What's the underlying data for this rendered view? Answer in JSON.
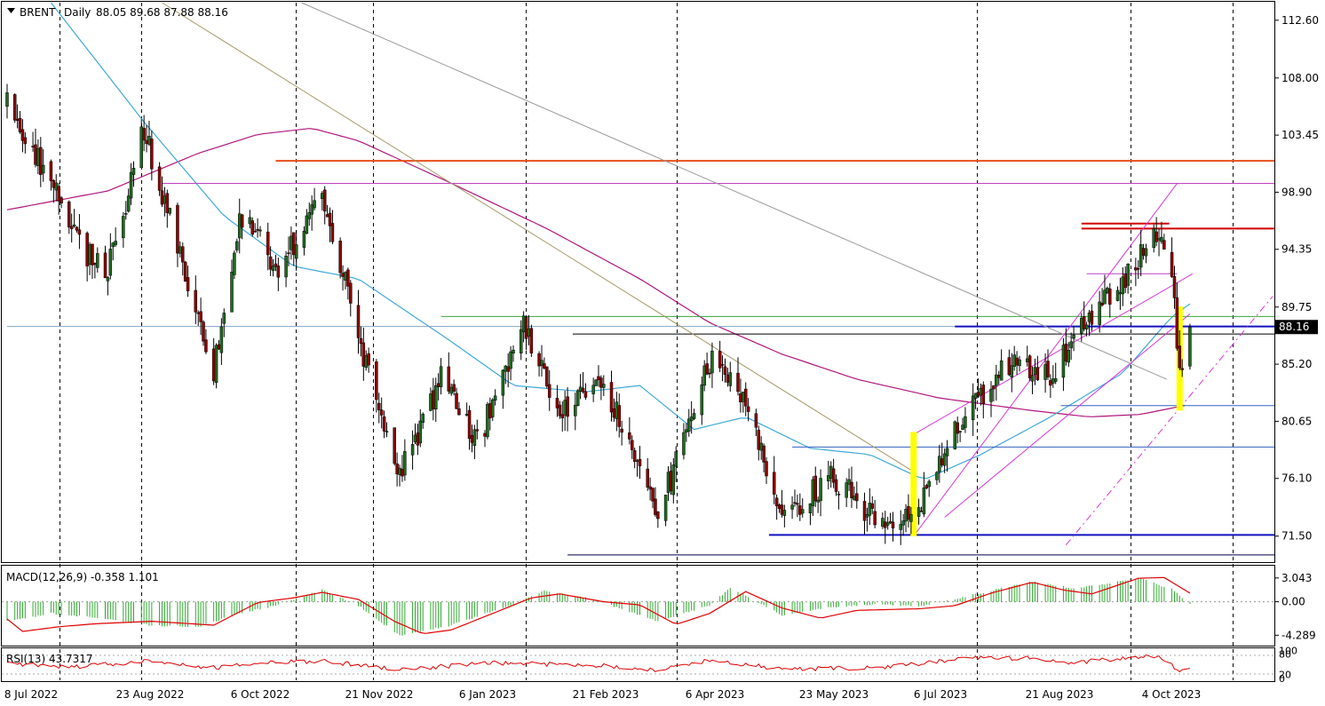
{
  "header": {
    "symbol": "BRENT",
    "timeframe": "Daily",
    "ohlc": "88.05 89.68 87.88 88.16",
    "menu_icon": "triangle-down-icon"
  },
  "price_axis": {
    "ticks": [
      "112.60",
      "108.00",
      "103.45",
      "98.90",
      "94.35",
      "89.75",
      "85.20",
      "80.65",
      "76.10",
      "71.50"
    ],
    "last_price_label": "88.16"
  },
  "macd_panel": {
    "label": "MACD(12,26,9) -0.358 1.101",
    "ticks": [
      "3.043",
      "0.00",
      "-4.289"
    ]
  },
  "rsi_panel": {
    "label": "RSI(13) 43.7317",
    "ticks": [
      "100",
      "80",
      "20",
      "0"
    ]
  },
  "time_axis": {
    "labels": [
      "8 Jul 2022",
      "23 Aug 2022",
      "6 Oct 2022",
      "21 Nov 2022",
      "6 Jan 2023",
      "21 Feb 2023",
      "6 Apr 2023",
      "23 May 2023",
      "6 Jul 2023",
      "21 Aug 2023",
      "4 Oct 2023"
    ]
  },
  "colors": {
    "background": "#ffffff",
    "bull_candle": "#1f6b1f",
    "bear_candle": "#8b0000",
    "ma_fast": "#3fa9d9",
    "ma_slow": "#b0157e",
    "macd_histogram": "#32a832",
    "macd_signal": "#e00000",
    "rsi_line": "#e00000",
    "resistance_orange": "#e8501a",
    "resistance_red": "#d00000",
    "support_blue": "#1010c0",
    "highlight_yellow": "#ffff00",
    "channel_magenta": "#d63ad6",
    "grid": "#000000"
  },
  "chart_data": {
    "type": "candlestick",
    "instrument": "BRENT",
    "timeframe": "Daily",
    "last_close": 88.16,
    "ylim": [
      69.5,
      114
    ],
    "x_range": [
      "2022-07-08",
      "2023-11-10"
    ],
    "grid": "vertical dashed",
    "price_path_anchors": [
      {
        "date": "2022-07-08",
        "price": 106
      },
      {
        "date": "2022-07-22",
        "price": 101
      },
      {
        "date": "2022-08-05",
        "price": 94.5
      },
      {
        "date": "2022-08-16",
        "price": 92.5
      },
      {
        "date": "2022-08-30",
        "price": 104
      },
      {
        "date": "2022-09-13",
        "price": 94
      },
      {
        "date": "2022-09-26",
        "price": 84.5
      },
      {
        "date": "2022-10-06",
        "price": 97
      },
      {
        "date": "2022-10-21",
        "price": 93
      },
      {
        "date": "2022-11-07",
        "price": 98.5
      },
      {
        "date": "2022-11-21",
        "price": 87.5
      },
      {
        "date": "2022-12-07",
        "price": 76.5
      },
      {
        "date": "2022-12-23",
        "price": 84
      },
      {
        "date": "2023-01-06",
        "price": 79
      },
      {
        "date": "2023-01-24",
        "price": 88
      },
      {
        "date": "2023-02-07",
        "price": 81
      },
      {
        "date": "2023-02-24",
        "price": 84
      },
      {
        "date": "2023-03-17",
        "price": 73
      },
      {
        "date": "2023-04-06",
        "price": 85.5
      },
      {
        "date": "2023-04-20",
        "price": 82.5
      },
      {
        "date": "2023-05-04",
        "price": 72.5
      },
      {
        "date": "2023-05-23",
        "price": 76.5
      },
      {
        "date": "2023-06-12",
        "price": 72
      },
      {
        "date": "2023-06-26",
        "price": 74
      },
      {
        "date": "2023-07-13",
        "price": 81
      },
      {
        "date": "2023-08-01",
        "price": 85.5
      },
      {
        "date": "2023-08-16",
        "price": 84
      },
      {
        "date": "2023-08-31",
        "price": 89
      },
      {
        "date": "2023-09-13",
        "price": 92
      },
      {
        "date": "2023-09-27",
        "price": 96
      },
      {
        "date": "2023-10-02",
        "price": 93
      },
      {
        "date": "2023-10-05",
        "price": 84.5
      },
      {
        "date": "2023-10-09",
        "price": 88.16
      }
    ],
    "ma_fast_path": [
      {
        "date": "2022-07-25",
        "price": 114
      },
      {
        "date": "2022-08-30",
        "price": 104.5
      },
      {
        "date": "2022-09-30",
        "price": 97
      },
      {
        "date": "2022-10-27",
        "price": 93
      },
      {
        "date": "2022-11-21",
        "price": 92
      },
      {
        "date": "2022-12-27",
        "price": 87
      },
      {
        "date": "2023-01-20",
        "price": 83.5
      },
      {
        "date": "2023-02-17",
        "price": 83
      },
      {
        "date": "2023-03-10",
        "price": 83.5
      },
      {
        "date": "2023-03-31",
        "price": 80
      },
      {
        "date": "2023-04-20",
        "price": 81
      },
      {
        "date": "2023-05-15",
        "price": 78.5
      },
      {
        "date": "2023-06-07",
        "price": 78
      },
      {
        "date": "2023-06-28",
        "price": 76
      },
      {
        "date": "2023-07-20",
        "price": 78
      },
      {
        "date": "2023-08-16",
        "price": 81
      },
      {
        "date": "2023-09-13",
        "price": 84.5
      },
      {
        "date": "2023-10-02",
        "price": 89
      },
      {
        "date": "2023-10-09",
        "price": 90
      }
    ],
    "ma_slow_path": [
      {
        "date": "2022-07-08",
        "price": 97.5
      },
      {
        "date": "2022-08-16",
        "price": 99
      },
      {
        "date": "2022-09-20",
        "price": 102
      },
      {
        "date": "2022-10-13",
        "price": 103.5
      },
      {
        "date": "2022-11-03",
        "price": 104
      },
      {
        "date": "2022-11-21",
        "price": 103
      },
      {
        "date": "2022-12-23",
        "price": 100
      },
      {
        "date": "2023-02-02",
        "price": 96
      },
      {
        "date": "2023-03-10",
        "price": 92
      },
      {
        "date": "2023-04-06",
        "price": 88.5
      },
      {
        "date": "2023-05-04",
        "price": 86
      },
      {
        "date": "2023-06-02",
        "price": 84
      },
      {
        "date": "2023-07-04",
        "price": 82.5
      },
      {
        "date": "2023-08-09",
        "price": 81.5
      },
      {
        "date": "2023-08-31",
        "price": 81
      },
      {
        "date": "2023-09-20",
        "price": 81.2
      },
      {
        "date": "2023-10-09",
        "price": 82
      }
    ],
    "horizontal_levels": [
      {
        "price": 101.4,
        "from": "2022-10-20",
        "color": "#e8501a"
      },
      {
        "price": 99.6,
        "from": "2022-09-06",
        "color": "#c040c0"
      },
      {
        "price": 96.4,
        "from": "2023-08-28",
        "to": "2023-10-01",
        "color": "#d00000"
      },
      {
        "price": 96.0,
        "from": "2023-08-28",
        "color": "#d00000"
      },
      {
        "price": 92.4,
        "from": "2023-08-30",
        "to": "2023-10-04",
        "color": "#c040c0"
      },
      {
        "price": 89.0,
        "from": "2022-12-23",
        "color": "#3aa63a"
      },
      {
        "price": 88.2,
        "from": "2022-07-08",
        "color": "#7fa6c6"
      },
      {
        "price": 88.2,
        "from": "2023-07-10",
        "color": "#1010c0"
      },
      {
        "price": 87.6,
        "from": "2023-02-12",
        "color": "#000000"
      },
      {
        "price": 81.9,
        "from": "2023-08-20",
        "color": "#3060c0"
      },
      {
        "price": 78.6,
        "from": "2023-05-08",
        "color": "#3060c0"
      },
      {
        "price": 71.6,
        "from": "2023-04-29",
        "color": "#1010c0"
      },
      {
        "price": 70.0,
        "from": "2023-02-10",
        "color": "#000050"
      }
    ],
    "trend_lines": [
      {
        "from": {
          "date": "2022-09-06",
          "price": 115
        },
        "to": {
          "date": "2023-06-25",
          "price": 76.5
        },
        "color": "#a59a6a"
      },
      {
        "from": {
          "date": "2022-10-30",
          "price": 114
        },
        "to": {
          "date": "2023-09-30",
          "price": 84
        },
        "color": "#999999"
      },
      {
        "from": {
          "date": "2023-06-24",
          "price": 71.5
        },
        "to": {
          "date": "2023-10-04",
          "price": 99.6
        },
        "color": "#d63ad6"
      },
      {
        "from": {
          "date": "2023-06-24",
          "price": 79.6
        },
        "to": {
          "date": "2023-10-10",
          "price": 92.4
        },
        "color": "#d63ad6"
      },
      {
        "from": {
          "date": "2023-07-06",
          "price": 73
        },
        "to": {
          "date": "2023-10-09",
          "price": 89.2
        },
        "color": "#d63ad6"
      },
      {
        "from": {
          "date": "2023-08-22",
          "price": 70.8
        },
        "to": {
          "date": "2023-11-10",
          "price": 90.6
        },
        "color": "#d63ad6",
        "dashed": true
      }
    ],
    "highlights": [
      {
        "date": "2023-06-24",
        "low": 71.5,
        "high": 79.8
      },
      {
        "date": "2023-10-05",
        "low": 81.5,
        "high": 89.8
      }
    ],
    "macd": {
      "ylim": [
        -5.5,
        4.5
      ],
      "signal_path": [
        {
          "date": "2022-07-08",
          "value": -2.2
        },
        {
          "date": "2022-07-14",
          "value": -3.8
        },
        {
          "date": "2022-07-28",
          "value": -3.2
        },
        {
          "date": "2022-08-12",
          "value": -2.8
        },
        {
          "date": "2022-09-02",
          "value": -2.5
        },
        {
          "date": "2022-09-26",
          "value": -3.0
        },
        {
          "date": "2022-10-13",
          "value": -0.1
        },
        {
          "date": "2022-10-27",
          "value": 0.5
        },
        {
          "date": "2022-11-07",
          "value": 1.2
        },
        {
          "date": "2022-11-21",
          "value": 0.3
        },
        {
          "date": "2022-12-05",
          "value": -2.5
        },
        {
          "date": "2022-12-16",
          "value": -4.1
        },
        {
          "date": "2022-12-27",
          "value": -3.6
        },
        {
          "date": "2023-01-12",
          "value": -1.5
        },
        {
          "date": "2023-01-27",
          "value": 0.5
        },
        {
          "date": "2023-02-07",
          "value": 1.0
        },
        {
          "date": "2023-02-24",
          "value": 0.0
        },
        {
          "date": "2023-03-10",
          "value": -0.4
        },
        {
          "date": "2023-03-24",
          "value": -2.9
        },
        {
          "date": "2023-04-06",
          "value": -1.5
        },
        {
          "date": "2023-04-20",
          "value": 1.3
        },
        {
          "date": "2023-05-04",
          "value": -0.8
        },
        {
          "date": "2023-05-19",
          "value": -2.1
        },
        {
          "date": "2023-06-02",
          "value": -1.1
        },
        {
          "date": "2023-06-26",
          "value": -0.9
        },
        {
          "date": "2023-07-10",
          "value": -0.5
        },
        {
          "date": "2023-07-24",
          "value": 1.1
        },
        {
          "date": "2023-08-09",
          "value": 2.5
        },
        {
          "date": "2023-08-21",
          "value": 1.5
        },
        {
          "date": "2023-09-01",
          "value": 1.0
        },
        {
          "date": "2023-09-19",
          "value": 3.0
        },
        {
          "date": "2023-09-29",
          "value": 3.1
        },
        {
          "date": "2023-10-09",
          "value": 1.1
        }
      ],
      "histogram_path": [
        {
          "date": "2022-07-08",
          "value": -2.5
        },
        {
          "date": "2022-07-25",
          "value": -1.5
        },
        {
          "date": "2022-08-16",
          "value": -2.2
        },
        {
          "date": "2022-09-01",
          "value": -3.0
        },
        {
          "date": "2022-09-20",
          "value": -3.2
        },
        {
          "date": "2022-10-06",
          "value": -1.5
        },
        {
          "date": "2022-10-20",
          "value": -0.5
        },
        {
          "date": "2022-11-07",
          "value": 1.5
        },
        {
          "date": "2022-11-21",
          "value": -0.5
        },
        {
          "date": "2022-12-07",
          "value": -4.3
        },
        {
          "date": "2022-12-27",
          "value": -3.0
        },
        {
          "date": "2023-01-20",
          "value": -0.3
        },
        {
          "date": "2023-02-01",
          "value": 1.4
        },
        {
          "date": "2023-02-20",
          "value": 0.3
        },
        {
          "date": "2023-03-17",
          "value": -2.5
        },
        {
          "date": "2023-04-06",
          "value": -0.5
        },
        {
          "date": "2023-04-14",
          "value": 1.8
        },
        {
          "date": "2023-05-04",
          "value": -1.7
        },
        {
          "date": "2023-05-20",
          "value": -0.8
        },
        {
          "date": "2023-06-09",
          "value": -0.3
        },
        {
          "date": "2023-06-26",
          "value": -0.6
        },
        {
          "date": "2023-07-13",
          "value": 0.6
        },
        {
          "date": "2023-08-09",
          "value": 2.6
        },
        {
          "date": "2023-08-25",
          "value": 1.7
        },
        {
          "date": "2023-09-20",
          "value": 3.0
        },
        {
          "date": "2023-10-02",
          "value": 1.6
        },
        {
          "date": "2023-10-09",
          "value": -0.36
        }
      ]
    },
    "rsi": {
      "ylim": [
        0,
        100
      ],
      "values_path": [
        {
          "date": "2022-07-08",
          "value": 55
        },
        {
          "date": "2022-08-01",
          "value": 42
        },
        {
          "date": "2022-08-30",
          "value": 60
        },
        {
          "date": "2022-09-26",
          "value": 40
        },
        {
          "date": "2022-10-20",
          "value": 58
        },
        {
          "date": "2022-11-07",
          "value": 62
        },
        {
          "date": "2022-12-07",
          "value": 35
        },
        {
          "date": "2023-01-12",
          "value": 55
        },
        {
          "date": "2023-02-24",
          "value": 48
        },
        {
          "date": "2023-03-17",
          "value": 32
        },
        {
          "date": "2023-04-06",
          "value": 65
        },
        {
          "date": "2023-05-04",
          "value": 36
        },
        {
          "date": "2023-06-12",
          "value": 40
        },
        {
          "date": "2023-07-13",
          "value": 70
        },
        {
          "date": "2023-08-09",
          "value": 72
        },
        {
          "date": "2023-08-21",
          "value": 55
        },
        {
          "date": "2023-09-27",
          "value": 78
        },
        {
          "date": "2023-10-05",
          "value": 28
        },
        {
          "date": "2023-10-09",
          "value": 43.73
        }
      ]
    }
  }
}
